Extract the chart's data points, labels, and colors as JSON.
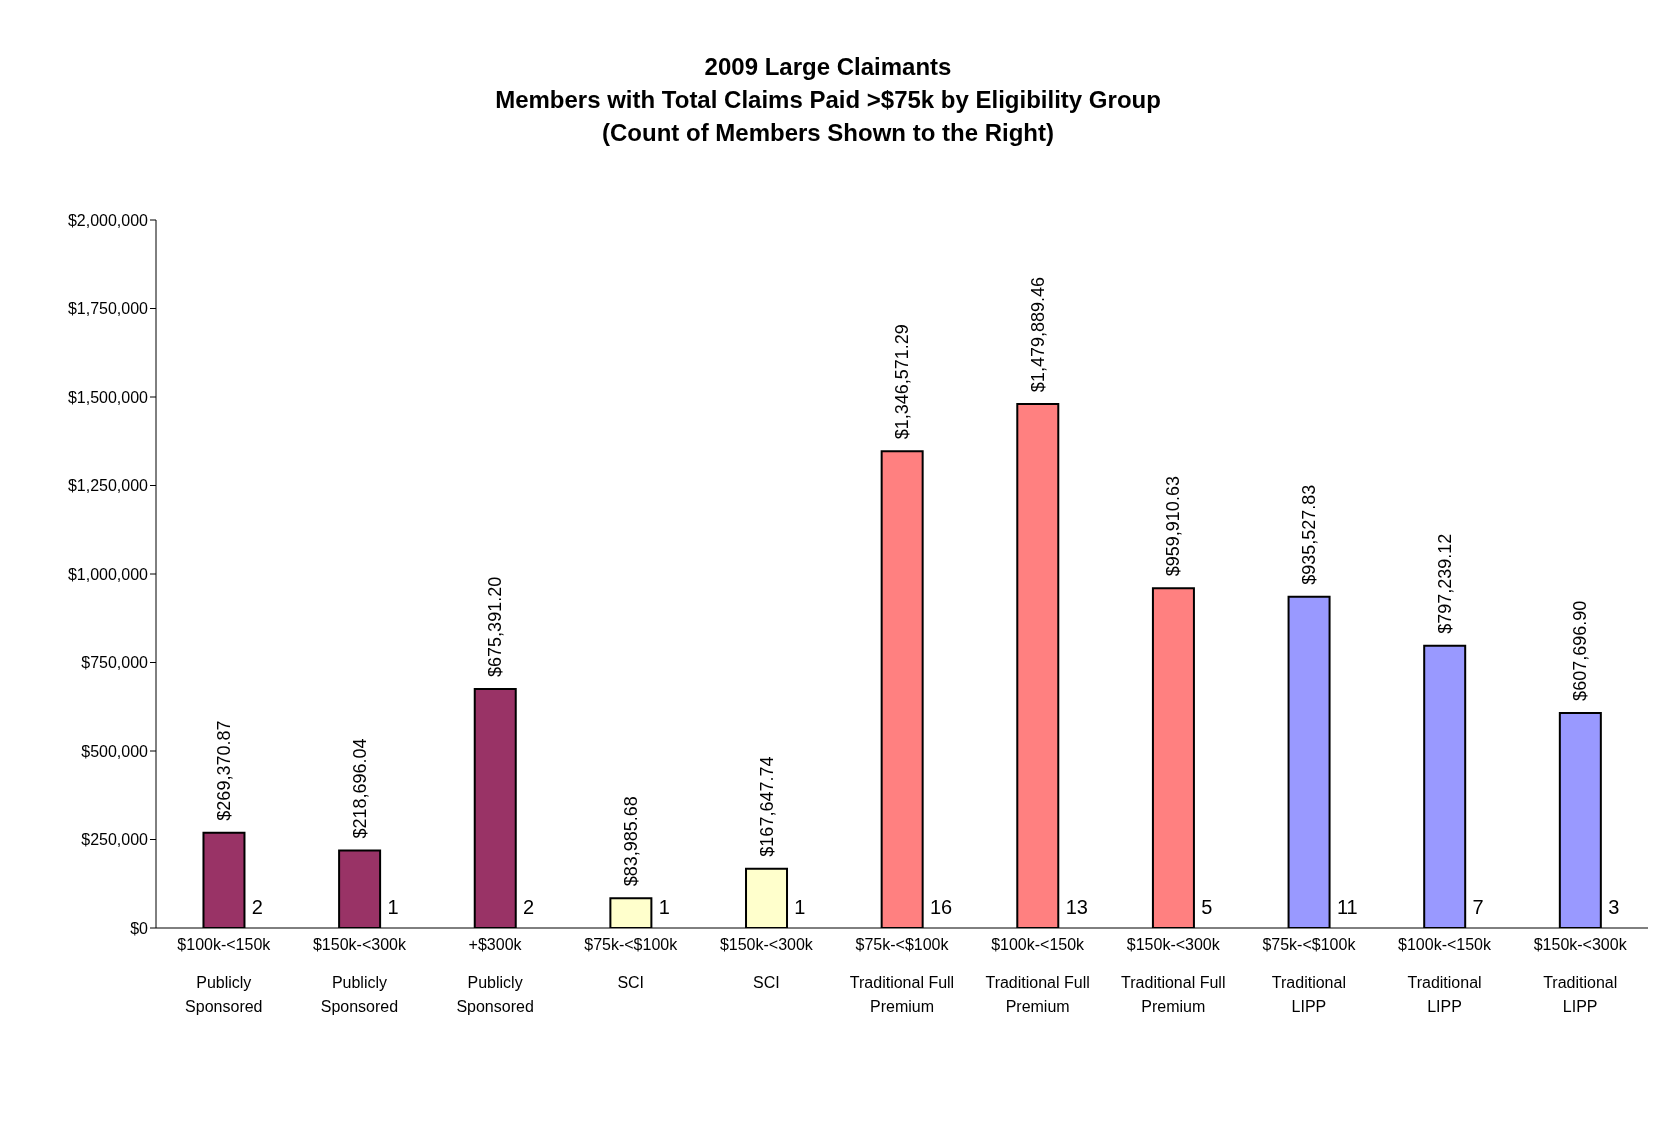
{
  "chart_data": {
    "type": "bar",
    "title": "2009 Large Claimants\nMembers with Total Claims Paid >$75k by Eligibility Group\n(Count of Members Shown to the Right)",
    "categories": [
      "$100k-<150k\nPublicly\nSponsored",
      "$150k-<300k\nPublicly\nSponsored",
      "+$300k\nPublicly\nSponsored",
      "$75k-<$100k\nSCI",
      "$150k-<300k\nSCI",
      "$75k-<$100k\nTraditional Full\nPremium",
      "$100k-<150k\nTraditional Full\nPremium",
      "$150k-<300k\nTraditional Full\nPremium",
      "$75k-<$100k\nTraditional\nLIPP",
      "$100k-<150k\nTraditional\nLIPP",
      "$150k-<300k\nTraditional\nLIPP"
    ],
    "values": [
      269370.87,
      218696.04,
      675391.2,
      83985.68,
      167647.74,
      1346571.29,
      1479889.46,
      959910.63,
      935527.83,
      797239.12,
      607696.9
    ],
    "value_labels": [
      "$269,370.87",
      "$218,696.04",
      "$675,391.20",
      "$83,985.68",
      "$167,647.74",
      "$1,346,571.29",
      "$1,479,889.46",
      "$959,910.63",
      "$935,527.83",
      "$797,239.12",
      "$607,696.90"
    ],
    "colors": [
      "#993366",
      "#993366",
      "#993366",
      "#ffffcc",
      "#ffffcc",
      "#ff8080",
      "#ff8080",
      "#ff8080",
      "#9999ff",
      "#9999ff",
      "#9999ff"
    ],
    "ylim": [
      0,
      2000000
    ],
    "yticks": [
      {
        "value": 0,
        "label": "$0"
      },
      {
        "value": 250000,
        "label": "$250,000"
      },
      {
        "value": 500000,
        "label": "$500,000"
      },
      {
        "value": 750000,
        "label": "$750,000"
      },
      {
        "value": 1000000,
        "label": "$1,000,000"
      },
      {
        "value": 1250000,
        "label": "$1,250,000"
      },
      {
        "value": 1500000,
        "label": "$1,500,000"
      },
      {
        "value": 1750000,
        "label": "$1,750,000"
      },
      {
        "value": 2000000,
        "label": "$2,000,000"
      }
    ],
    "annotations": [
      {
        "text": "2",
        "x": "$100k-<150k\nPublicly\nSponsored",
        "y": 0
      },
      {
        "text": "1",
        "x": "$150k-<300k\nPublicly\nSponsored",
        "y": 0
      },
      {
        "text": "2",
        "x": "+$300k\nPublicly\nSponsored",
        "y": 0
      },
      {
        "text": "1",
        "x": "$75k-<$100k\nSCI",
        "y": 0
      },
      {
        "text": "1",
        "x": "$150k-<300k\nSCI",
        "y": 0
      },
      {
        "text": "16",
        "x": "$75k-<$100k\nTraditional Full\nPremium",
        "y": 0
      },
      {
        "text": "13",
        "x": "$100k-<150k\nTraditional Full\nPremium",
        "y": 0
      },
      {
        "text": "5",
        "x": "$150k-<300k\nTraditional Full\nPremium",
        "y": 0
      },
      {
        "text": "11",
        "x": "$75k-<$100k\nTraditional\nLIPP",
        "y": 0
      },
      {
        "text": "7",
        "x": "$100k-<150k\nTraditional\nLIPP",
        "y": 0
      },
      {
        "text": "3",
        "x": "$150k-<300k\nTraditional\nLIPP",
        "y": 0
      }
    ],
    "grid": false,
    "legend": false
  }
}
